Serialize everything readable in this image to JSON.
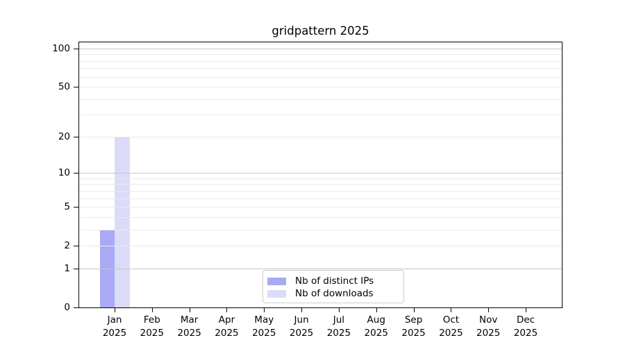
{
  "chart_data": {
    "type": "bar",
    "title": "gridpattern 2025",
    "x_axis": {
      "months": [
        "Jan",
        "Feb",
        "Mar",
        "Apr",
        "May",
        "Jun",
        "Jul",
        "Aug",
        "Sep",
        "Oct",
        "Nov",
        "Dec"
      ],
      "year": "2025",
      "categories": [
        "Jan 2025",
        "Feb 2025",
        "Mar 2025",
        "Apr 2025",
        "May 2025",
        "Jun 2025",
        "Jul 2025",
        "Aug 2025",
        "Sep 2025",
        "Oct 2025",
        "Nov 2025",
        "Dec 2025"
      ]
    },
    "y_axis": {
      "scale": "log1p",
      "ylim": [
        0,
        112
      ],
      "tick_values": [
        0,
        1,
        2,
        5,
        10,
        20,
        50,
        100
      ],
      "tick_labels": [
        "0",
        "1",
        "2",
        "5",
        "10",
        "20",
        "50",
        "100"
      ],
      "major_gridlines": [
        1,
        10,
        100
      ],
      "minor_gridlines": [
        2,
        3,
        4,
        5,
        6,
        7,
        8,
        9,
        20,
        30,
        40,
        50,
        60,
        70,
        80,
        90
      ],
      "grid_over_bars": true
    },
    "series": [
      {
        "name": "Nb of distinct IPs",
        "color": "#a9a9f6",
        "values": [
          3,
          0,
          0,
          0,
          0,
          0,
          0,
          0,
          0,
          0,
          0,
          0
        ]
      },
      {
        "name": "Nb of downloads",
        "color": "#dbdbf9",
        "values": [
          20,
          0,
          0,
          0,
          0,
          0,
          0,
          0,
          0,
          0,
          0,
          0
        ]
      }
    ],
    "legend": {
      "position": "lower center"
    }
  },
  "colors": {
    "background": "#ffffff",
    "axis": "#000000",
    "grid_major": "#c6c6c6",
    "grid_minor": "#eaeaea",
    "bar_distinct_ips": "#a9a9f6",
    "bar_downloads": "#dbdbf9",
    "legend_border": "#cccccc"
  }
}
